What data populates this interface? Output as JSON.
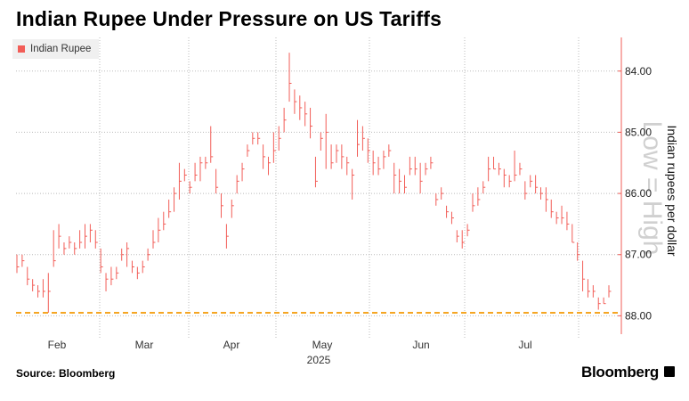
{
  "header": {
    "title": "Indian Rupee Under Pressure on US Tariffs"
  },
  "legend": {
    "label": "Indian Rupee",
    "color": "#f25d57"
  },
  "footer": {
    "source": "Source: Bloomberg",
    "brand": "Bloomberg"
  },
  "watermark": "Low = High",
  "colors": {
    "bars": "#f25d57",
    "reference_line": "#f5a623",
    "grid": "#bbbbbb"
  },
  "chart_data": {
    "type": "ohlc",
    "title": "Indian Rupee Under Pressure on US Tariffs",
    "series": [
      {
        "name": "Indian Rupee"
      }
    ],
    "ylabel": "Indian rupees per dollar",
    "xlabel": "2025",
    "y_inverted": true,
    "ylim": [
      88.3,
      83.45
    ],
    "yticks": [
      84,
      85,
      86,
      87,
      88
    ],
    "ytick_labels": [
      "84.00",
      "85.00",
      "86.00",
      "87.00",
      "88.00"
    ],
    "x_months": [
      "Feb",
      "Mar",
      "Apr",
      "May",
      "Jun",
      "Jul"
    ],
    "x_year": "2025",
    "reference_line": 87.95,
    "grid": true,
    "bars": [
      [
        87.2,
        87.0,
        87.3
      ],
      [
        87.1,
        87.0,
        87.2
      ],
      [
        87.4,
        87.2,
        87.5
      ],
      [
        87.5,
        87.4,
        87.6
      ],
      [
        87.6,
        87.5,
        87.7
      ],
      [
        87.6,
        87.4,
        87.7
      ],
      [
        87.6,
        87.3,
        87.95
      ],
      [
        87.1,
        86.6,
        87.2
      ],
      [
        86.7,
        86.5,
        86.9
      ],
      [
        86.9,
        86.8,
        87.0
      ],
      [
        86.8,
        86.7,
        86.9
      ],
      [
        86.9,
        86.8,
        87.0
      ],
      [
        86.8,
        86.6,
        86.9
      ],
      [
        86.7,
        86.5,
        86.9
      ],
      [
        86.6,
        86.5,
        86.8
      ],
      [
        86.8,
        86.6,
        86.9
      ],
      [
        87.2,
        86.9,
        87.3
      ],
      [
        87.4,
        87.3,
        87.6
      ],
      [
        87.4,
        87.2,
        87.5
      ],
      [
        87.3,
        87.2,
        87.4
      ],
      [
        87.0,
        86.9,
        87.1
      ],
      [
        86.9,
        86.8,
        87.2
      ],
      [
        87.2,
        87.1,
        87.3
      ],
      [
        87.3,
        87.2,
        87.4
      ],
      [
        87.2,
        87.1,
        87.3
      ],
      [
        87.0,
        86.9,
        87.1
      ],
      [
        86.8,
        86.6,
        86.9
      ],
      [
        86.6,
        86.4,
        86.8
      ],
      [
        86.5,
        86.3,
        86.6
      ],
      [
        86.3,
        86.1,
        86.4
      ],
      [
        86.0,
        85.9,
        86.3
      ],
      [
        85.8,
        85.5,
        86.1
      ],
      [
        85.7,
        85.6,
        85.8
      ],
      [
        85.9,
        85.8,
        86.0
      ],
      [
        85.7,
        85.5,
        85.8
      ],
      [
        85.5,
        85.4,
        85.8
      ],
      [
        85.5,
        85.4,
        85.6
      ],
      [
        85.4,
        84.9,
        85.5
      ],
      [
        85.9,
        85.6,
        86.0
      ],
      [
        86.2,
        86.0,
        86.4
      ],
      [
        86.7,
        86.5,
        86.9
      ],
      [
        86.2,
        86.1,
        86.4
      ],
      [
        85.8,
        85.7,
        86.0
      ],
      [
        85.6,
        85.5,
        85.8
      ],
      [
        85.3,
        85.2,
        85.4
      ],
      [
        85.1,
        85.0,
        85.2
      ],
      [
        85.1,
        85.0,
        85.2
      ],
      [
        85.4,
        85.2,
        85.6
      ],
      [
        85.5,
        85.4,
        85.7
      ],
      [
        85.3,
        85.0,
        85.5
      ],
      [
        85.1,
        84.9,
        85.3
      ],
      [
        84.8,
        84.6,
        85.0
      ],
      [
        84.2,
        83.7,
        84.5
      ],
      [
        84.5,
        84.3,
        84.7
      ],
      [
        84.6,
        84.4,
        84.8
      ],
      [
        84.7,
        84.5,
        84.9
      ],
      [
        84.9,
        84.6,
        85.1
      ],
      [
        85.8,
        85.4,
        85.9
      ],
      [
        85.1,
        85.0,
        85.3
      ],
      [
        85.0,
        84.7,
        85.6
      ],
      [
        85.5,
        85.2,
        85.6
      ],
      [
        85.3,
        85.2,
        85.5
      ],
      [
        85.4,
        85.2,
        85.6
      ],
      [
        85.5,
        85.4,
        85.7
      ],
      [
        85.7,
        85.6,
        86.1
      ],
      [
        85.2,
        84.8,
        85.4
      ],
      [
        85.1,
        84.9,
        85.3
      ],
      [
        85.3,
        85.1,
        85.5
      ],
      [
        85.5,
        85.3,
        85.7
      ],
      [
        85.6,
        85.4,
        85.7
      ],
      [
        85.4,
        85.3,
        85.6
      ],
      [
        85.3,
        85.2,
        85.4
      ],
      [
        85.7,
        85.5,
        86.0
      ],
      [
        85.8,
        85.6,
        86.0
      ],
      [
        85.9,
        85.7,
        86.0
      ],
      [
        85.6,
        85.4,
        85.7
      ],
      [
        85.6,
        85.4,
        85.7
      ],
      [
        85.8,
        85.5,
        86.0
      ],
      [
        85.6,
        85.5,
        85.7
      ],
      [
        85.5,
        85.4,
        85.6
      ],
      [
        86.1,
        86.0,
        86.2
      ],
      [
        86.0,
        85.9,
        86.1
      ],
      [
        86.3,
        86.2,
        86.4
      ],
      [
        86.4,
        86.3,
        86.5
      ],
      [
        86.7,
        86.6,
        86.8
      ],
      [
        86.8,
        86.6,
        86.9
      ],
      [
        86.6,
        86.5,
        86.7
      ],
      [
        86.2,
        86.0,
        86.3
      ],
      [
        86.1,
        85.9,
        86.2
      ],
      [
        85.9,
        85.8,
        86.0
      ],
      [
        85.6,
        85.4,
        85.8
      ],
      [
        85.6,
        85.4,
        85.6
      ],
      [
        85.6,
        85.5,
        85.7
      ],
      [
        85.7,
        85.6,
        85.9
      ],
      [
        85.8,
        85.7,
        85.9
      ],
      [
        85.7,
        85.3,
        85.8
      ],
      [
        85.6,
        85.5,
        85.7
      ],
      [
        86.0,
        85.8,
        86.1
      ],
      [
        85.8,
        85.7,
        85.9
      ],
      [
        85.9,
        85.7,
        86.0
      ],
      [
        86.0,
        85.9,
        86.1
      ],
      [
        86.1,
        85.9,
        86.3
      ],
      [
        86.3,
        86.1,
        86.4
      ],
      [
        86.4,
        86.3,
        86.5
      ],
      [
        86.4,
        86.2,
        86.5
      ],
      [
        86.5,
        86.3,
        86.6
      ],
      [
        86.8,
        86.5,
        86.8
      ],
      [
        87.0,
        86.8,
        87.1
      ],
      [
        87.4,
        87.1,
        87.6
      ],
      [
        87.6,
        87.4,
        87.7
      ],
      [
        87.6,
        87.5,
        87.7
      ],
      [
        87.8,
        87.7,
        87.9
      ],
      [
        87.8,
        87.7,
        87.8
      ],
      [
        87.6,
        87.5,
        87.7
      ]
    ]
  }
}
